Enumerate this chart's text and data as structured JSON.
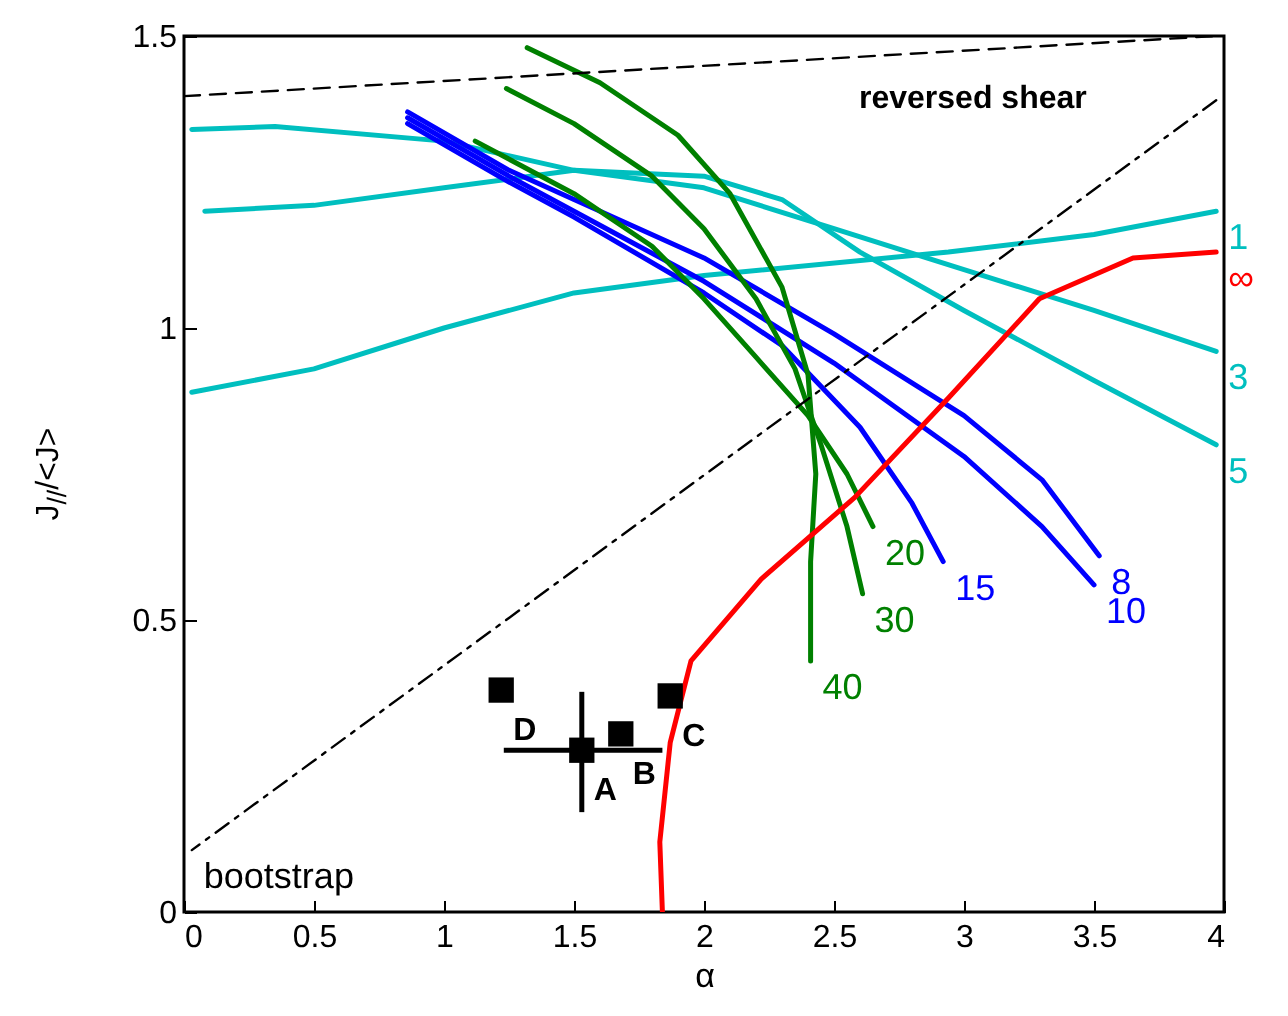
{
  "chart_data": {
    "type": "line",
    "xlabel": "α",
    "ylabel": "J$_{//}$/<J>",
    "xlim": [
      0,
      4
    ],
    "ylim": [
      0,
      1.5
    ],
    "xticks": [
      0,
      0.5,
      1,
      1.5,
      2,
      2.5,
      3,
      3.5,
      4
    ],
    "yticks": [
      0,
      0.5,
      1,
      1.5
    ],
    "grid": false,
    "series": [
      {
        "name": "1",
        "color": "#00bfbf",
        "x": [
          0.03,
          0.5,
          1,
          1.5,
          2,
          2.94,
          3.5,
          3.97
        ],
        "values": [
          0.89,
          0.93,
          1.0,
          1.06,
          1.09,
          1.13,
          1.16,
          1.2
        ]
      },
      {
        "name": "3",
        "color": "#00bfbf",
        "x": [
          0.03,
          0.35,
          1,
          1.5,
          2,
          2.5,
          3,
          3.5,
          3.97
        ],
        "values": [
          1.34,
          1.345,
          1.32,
          1.27,
          1.24,
          1.17,
          1.1,
          1.03,
          0.96
        ]
      },
      {
        "name": "5",
        "color": "#00bfbf",
        "x": [
          0.08,
          0.5,
          1,
          1.5,
          2,
          2.3,
          2.6,
          3,
          3.5,
          3.97
        ],
        "values": [
          1.2,
          1.21,
          1.24,
          1.27,
          1.26,
          1.22,
          1.13,
          1.03,
          0.91,
          0.8
        ]
      },
      {
        "name": "8",
        "color": "#0000ff",
        "x": [
          0.86,
          1.25,
          1.5,
          2,
          2.5,
          3,
          3.3,
          3.52
        ],
        "values": [
          1.37,
          1.27,
          1.22,
          1.12,
          0.99,
          0.85,
          0.74,
          0.61
        ]
      },
      {
        "name": "10",
        "color": "#0000ff",
        "x": [
          0.86,
          1.25,
          1.5,
          2,
          2.5,
          3,
          3.3,
          3.5
        ],
        "values": [
          1.36,
          1.26,
          1.2,
          1.08,
          0.94,
          0.78,
          0.66,
          0.56
        ]
      },
      {
        "name": "15",
        "color": "#0000ff",
        "x": [
          0.86,
          1.25,
          1.5,
          2,
          2.3,
          2.6,
          2.8,
          2.92
        ],
        "values": [
          1.35,
          1.25,
          1.19,
          1.06,
          0.97,
          0.83,
          0.7,
          0.6
        ]
      },
      {
        "name": "20",
        "color": "#008000",
        "x": [
          1.12,
          1.5,
          1.8,
          2.0,
          2.2,
          2.4,
          2.55,
          2.65
        ],
        "values": [
          1.32,
          1.23,
          1.14,
          1.05,
          0.95,
          0.85,
          0.75,
          0.66
        ]
      },
      {
        "name": "30",
        "color": "#008000",
        "x": [
          1.24,
          1.5,
          1.8,
          2.0,
          2.2,
          2.35,
          2.45,
          2.55,
          2.61
        ],
        "values": [
          1.41,
          1.35,
          1.26,
          1.17,
          1.05,
          0.93,
          0.8,
          0.66,
          0.545
        ]
      },
      {
        "name": "40",
        "color": "#008000",
        "x": [
          1.32,
          1.6,
          1.9,
          2.1,
          2.3,
          2.4,
          2.43,
          2.41,
          2.41
        ],
        "values": [
          1.48,
          1.42,
          1.33,
          1.23,
          1.07,
          0.92,
          0.75,
          0.6,
          0.43
        ]
      },
      {
        "name": "∞",
        "color": "#ff0000",
        "x": [
          1.84,
          1.83,
          1.87,
          1.95,
          2.22,
          2.58,
          2.94,
          3.29,
          3.65,
          3.97
        ],
        "values": [
          0,
          0.12,
          0.29,
          0.43,
          0.57,
          0.71,
          0.88,
          1.05,
          1.12,
          1.13
        ]
      },
      {
        "color": "#000000",
        "line_style": "dashed",
        "x": [
          0,
          3.97
        ],
        "values": [
          1.397,
          1.5
        ]
      },
      {
        "name": "bootstrap",
        "color": "#000000",
        "line_style": "dotted",
        "x": [
          3.97,
          0.03
        ],
        "values": [
          1.39,
          0.106
        ]
      },
      {
        "type": "scatter",
        "marker": "square",
        "color": "#000000",
        "x": [
          1.22,
          1.53,
          1.68,
          1.87
        ],
        "values": [
          0.38,
          0.277,
          0.305,
          0.37
        ],
        "errors": [
          null,
          [
            0.171,
            0.377
          ],
          null,
          null
        ],
        "xerrors": [
          null,
          [
            1.23,
            1.84
          ],
          null,
          null
        ]
      }
    ],
    "annotations": [
      {
        "text": "reversed shear",
        "x": 2.55,
        "y": 1.463
      },
      {
        "text": "D",
        "x": 1.22,
        "y": 0.38
      },
      {
        "text": "A",
        "x": 1.53,
        "y": 0.277
      },
      {
        "text": "B",
        "x": 1.68,
        "y": 0.305
      },
      {
        "text": "C",
        "x": 1.87,
        "y": 0.37
      }
    ]
  }
}
